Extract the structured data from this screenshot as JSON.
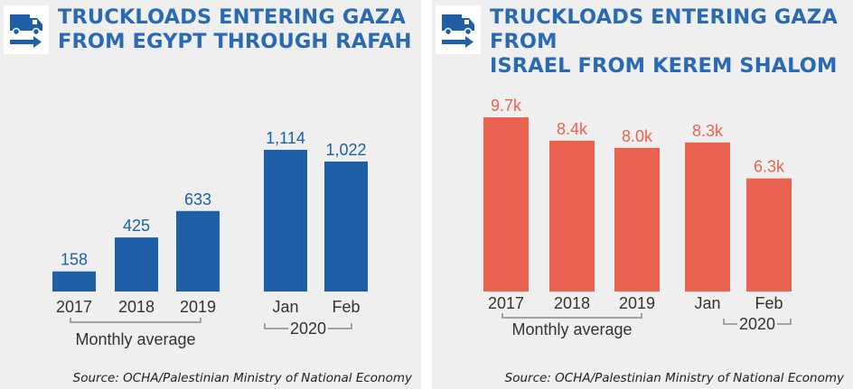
{
  "panels": [
    {
      "title": "TRUCKLOADS ENTERING GAZA\nFROM EGYPT THROUGH RAFAH",
      "source": "Source: OCHA/Palestinian Ministry of National Economy",
      "icon": "truck-arrow-icon",
      "bar_color": "#1f5fa8",
      "label_color": "#1f5fa8",
      "group_labels": {
        "monthly": "Monthly average",
        "year": "2020"
      }
    },
    {
      "title": "TRUCKLOADS ENTERING GAZA FROM\nISRAEL FROM KEREM SHALOM",
      "source": "Source: OCHA/Palestinian Ministry of National Economy",
      "icon": "truck-arrow-icon",
      "bar_color": "#ea6350",
      "label_color": "#ea6350",
      "group_labels": {
        "monthly": "Monthly average",
        "year": "2020"
      }
    }
  ],
  "chart_data": [
    {
      "type": "bar",
      "title": "TRUCKLOADS ENTERING GAZA FROM EGYPT THROUGH RAFAH",
      "categories": [
        "2017",
        "2018",
        "2019",
        "Jan",
        "Feb"
      ],
      "values": [
        158,
        425,
        633,
        1114,
        1022
      ],
      "data_labels": [
        "158",
        "425",
        "633",
        "1,114",
        "1,022"
      ],
      "ylim": [
        0,
        1114
      ],
      "groups": [
        {
          "label": "Monthly average",
          "categories": [
            "2017",
            "2018",
            "2019"
          ]
        },
        {
          "label": "2020",
          "categories": [
            "Jan",
            "Feb"
          ]
        }
      ],
      "grid": false,
      "legend": "none"
    },
    {
      "type": "bar",
      "title": "TRUCKLOADS ENTERING GAZA FROM ISRAEL FROM KEREM SHALOM",
      "categories": [
        "2017",
        "2018",
        "2019",
        "Jan",
        "Feb"
      ],
      "values": [
        9700,
        8400,
        8000,
        8300,
        6300
      ],
      "data_labels": [
        "9.7k",
        "8.4k",
        "8.0k",
        "8.3k",
        "6.3k"
      ],
      "ylim": [
        0,
        9700
      ],
      "groups": [
        {
          "label": "Monthly average",
          "categories": [
            "2017",
            "2018",
            "2019"
          ]
        },
        {
          "label": "2020",
          "categories": [
            "Jan",
            "Feb"
          ]
        }
      ],
      "grid": false,
      "legend": "none"
    }
  ]
}
